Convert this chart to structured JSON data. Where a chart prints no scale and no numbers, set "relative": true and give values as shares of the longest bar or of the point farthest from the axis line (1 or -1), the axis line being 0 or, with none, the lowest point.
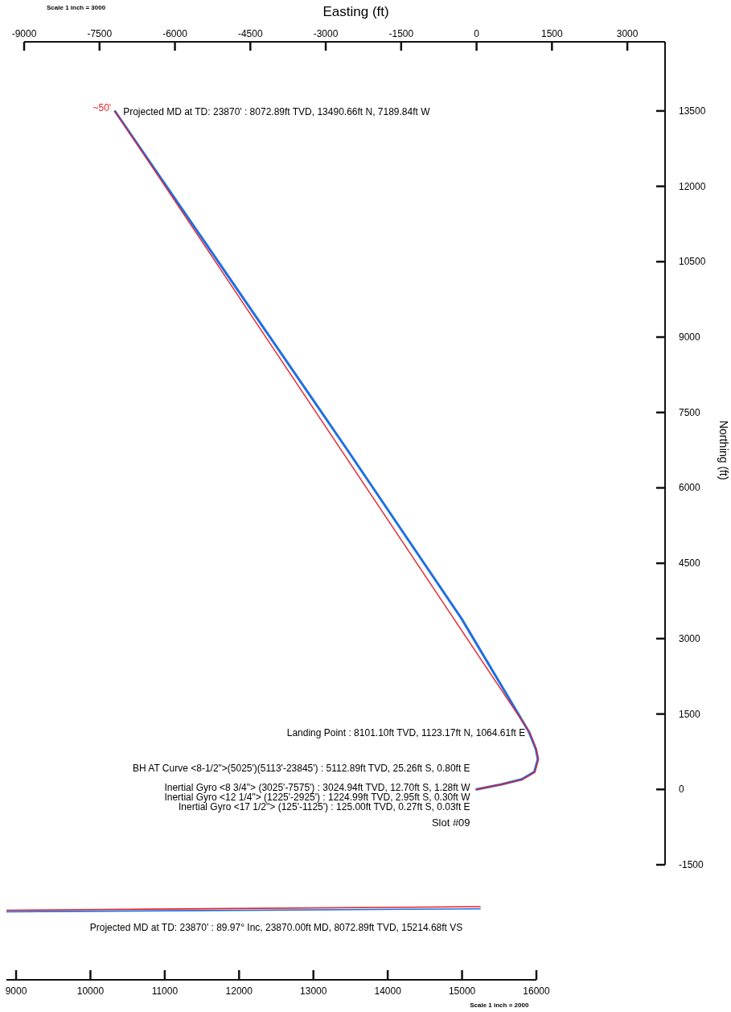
{
  "chart_data": [
    {
      "type": "line",
      "xlabel": "Easting (ft)",
      "ylabel": "Northing (ft)",
      "xlim": [
        -9000,
        3750
      ],
      "ylim": [
        -1500,
        14875
      ],
      "xticks": [
        -9000,
        -7500,
        -6000,
        -4500,
        -3000,
        -1500,
        0,
        1500,
        3000
      ],
      "yticks": [
        -1500,
        0,
        1500,
        3000,
        4500,
        6000,
        7500,
        9000,
        10500,
        12000,
        13500
      ],
      "series": [
        {
          "color": "#1f6fe0",
          "x": [
            0,
            500,
            900,
            1150,
            1220,
            1180,
            1100,
            1040,
            -300,
            -2600,
            -7190
          ],
          "values": [
            0,
            100,
            200,
            350,
            600,
            800,
            1000,
            1150,
            3400,
            6800,
            13490
          ]
        },
        {
          "color": "#e8202a",
          "x": [
            0,
            500,
            900,
            1160,
            1230,
            1190,
            1110,
            1065,
            -7190
          ],
          "values": [
            0,
            100,
            190,
            340,
            600,
            800,
            1000,
            1123,
            13490
          ]
        }
      ],
      "annotations": [
        "Scale 1 inch = 3000",
        "~50'",
        {
          "text": "Projected MD at TD: 23870' : 8072.89ft TVD, 13490.66ft N, 7189.84ft W",
          "x": -7190,
          "y": 13490
        },
        {
          "text": "Landing Point : 8101.10ft TVD, 1123.17ft N, 1064.61ft E",
          "x": 1065,
          "y": 1123
        },
        "BH AT Curve <8-1/2\">(5025')(5113'-23845') : 5112.89ft TVD, 25.26ft S, 0.80ft E",
        "Inertial Gyro <8 3/4\"> (3025'-7575') : 3024.94ft TVD, 12.70ft S, 1.28ft W",
        "Inertial Gyro <12 1/4\"> (1225'-2925') : 1224.99ft TVD, 2.95ft S, 0.30ft W",
        "Inertial Gyro <17 1/2\"> (125'-1125') : 125.00ft TVD, 0.27ft S, 0.03ft E",
        "Slot #09"
      ]
    },
    {
      "type": "line",
      "relative": true,
      "xlim": [
        8870,
        16000
      ],
      "xticks": [
        9000,
        10000,
        11000,
        12000,
        13000,
        14000,
        15000,
        16000
      ],
      "series": [
        {
          "color": "#e8202a",
          "x": [
            8870,
            15250
          ],
          "values": [
            0.95,
            1
          ]
        },
        {
          "color": "#1f6fe0",
          "x": [
            8870,
            15250
          ],
          "values": [
            0.93,
            0.97
          ]
        }
      ],
      "annotations": [
        "Projected MD at TD: 23870' : 89.97° Inc, 23870.00ft MD, 8072.89ft TVD, 15214.68ft VS",
        "Scale 1 inch = 2000"
      ]
    }
  ]
}
